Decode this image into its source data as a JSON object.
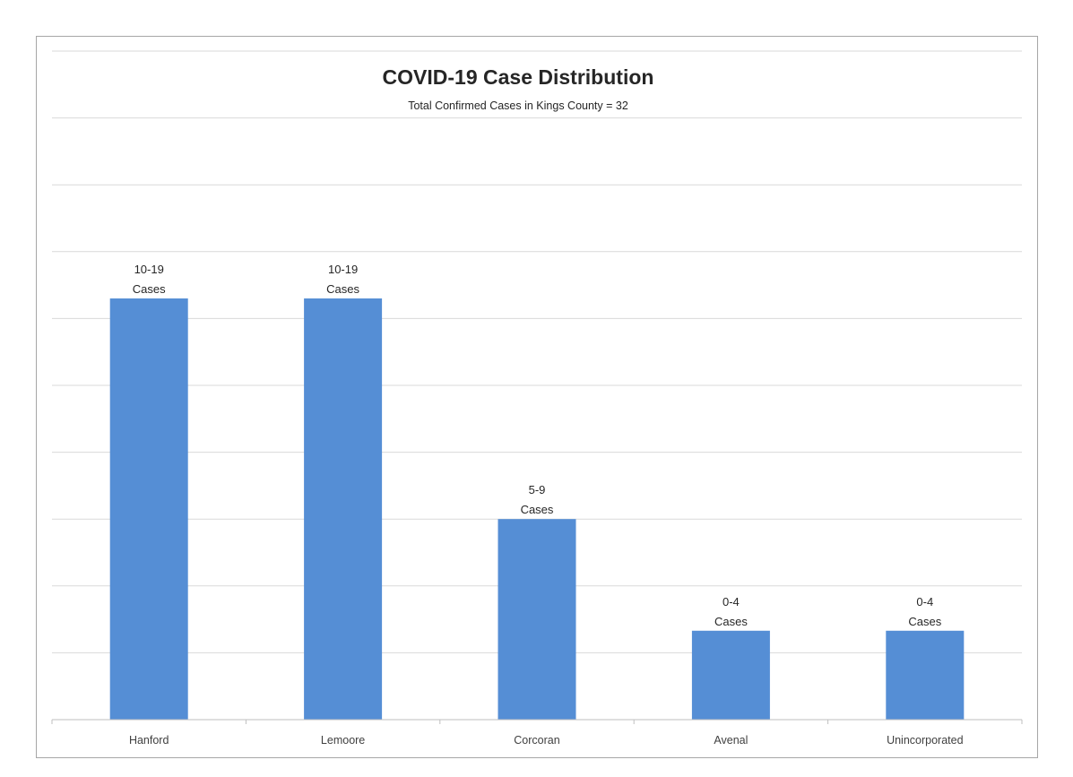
{
  "colors": {
    "bar": "#558ED5",
    "gridline": "#d9d9d9",
    "axis": "#bfbfbf",
    "text": "#262626"
  },
  "chart_data": {
    "type": "bar",
    "title": "COVID-19 Case Distribution",
    "subtitle": "Total Confirmed Cases in Kings County = 32",
    "xlabel": "",
    "ylabel": "",
    "categories": [
      "Hanford",
      "Lemoore",
      "Corcoran",
      "Avenal",
      "Unincorporated"
    ],
    "values": [
      6.3,
      6.3,
      3.0,
      1.33,
      1.33
    ],
    "data_labels": [
      [
        "10-19",
        "Cases"
      ],
      [
        "10-19",
        "Cases"
      ],
      [
        "5-9",
        "Cases"
      ],
      [
        "0-4",
        "Cases"
      ],
      [
        "0-4",
        "Cases"
      ]
    ],
    "ylim": [
      0,
      10
    ],
    "y_axis_labels_shown": false,
    "gridlines": true,
    "legend": "none"
  }
}
